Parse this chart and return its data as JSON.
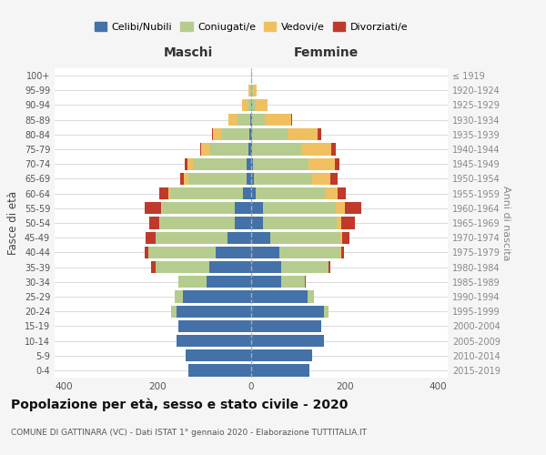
{
  "age_groups": [
    "0-4",
    "5-9",
    "10-14",
    "15-19",
    "20-24",
    "25-29",
    "30-34",
    "35-39",
    "40-44",
    "45-49",
    "50-54",
    "55-59",
    "60-64",
    "65-69",
    "70-74",
    "75-79",
    "80-84",
    "85-89",
    "90-94",
    "95-99",
    "100+"
  ],
  "birth_years": [
    "2015-2019",
    "2010-2014",
    "2005-2009",
    "2000-2004",
    "1995-1999",
    "1990-1994",
    "1985-1989",
    "1980-1984",
    "1975-1979",
    "1970-1974",
    "1965-1969",
    "1960-1964",
    "1955-1959",
    "1950-1954",
    "1945-1949",
    "1940-1944",
    "1935-1939",
    "1930-1934",
    "1925-1929",
    "1920-1924",
    "≤ 1919"
  ],
  "colors": {
    "celibi": "#4472a8",
    "coniugati": "#b5cc8e",
    "vedovi": "#f0c060",
    "divorziati": "#c0392b"
  },
  "maschi": {
    "celibi": [
      135,
      140,
      160,
      155,
      160,
      145,
      95,
      90,
      75,
      50,
      35,
      35,
      18,
      10,
      10,
      5,
      4,
      2,
      0,
      0,
      0
    ],
    "coniugati": [
      0,
      0,
      0,
      0,
      12,
      18,
      60,
      115,
      145,
      155,
      160,
      155,
      155,
      125,
      115,
      85,
      60,
      28,
      8,
      2,
      0
    ],
    "vedovi": [
      0,
      0,
      0,
      0,
      0,
      0,
      0,
      0,
      0,
      0,
      2,
      2,
      4,
      8,
      12,
      16,
      18,
      18,
      12,
      3,
      0
    ],
    "divorziati": [
      0,
      0,
      0,
      0,
      0,
      0,
      0,
      8,
      8,
      20,
      20,
      35,
      20,
      8,
      5,
      2,
      2,
      0,
      0,
      0,
      0
    ]
  },
  "femmine": {
    "celibi": [
      125,
      130,
      155,
      150,
      155,
      120,
      65,
      65,
      60,
      40,
      25,
      25,
      10,
      5,
      3,
      2,
      2,
      2,
      2,
      0,
      0
    ],
    "coniugati": [
      0,
      0,
      0,
      0,
      10,
      15,
      50,
      100,
      130,
      150,
      158,
      155,
      150,
      125,
      120,
      105,
      75,
      28,
      8,
      3,
      0
    ],
    "vedovi": [
      0,
      0,
      0,
      0,
      0,
      0,
      0,
      0,
      3,
      5,
      10,
      20,
      25,
      40,
      55,
      65,
      65,
      55,
      25,
      8,
      2
    ],
    "divorziati": [
      0,
      0,
      0,
      0,
      0,
      0,
      2,
      5,
      5,
      15,
      28,
      35,
      18,
      15,
      10,
      8,
      8,
      2,
      0,
      0,
      0
    ]
  },
  "xlim": 420,
  "title": "Popolazione per età, sesso e stato civile - 2020",
  "subtitle": "COMUNE DI GATTINARA (VC) - Dati ISTAT 1° gennaio 2020 - Elaborazione TUTTITALIA.IT",
  "ylabel": "Fasce di età",
  "ylabel_right": "Anni di nascita",
  "xlabel_maschi": "Maschi",
  "xlabel_femmine": "Femmine",
  "legend_labels": [
    "Celibi/Nubili",
    "Coniugati/e",
    "Vedovi/e",
    "Divorziati/e"
  ],
  "bg_color": "#f5f5f5",
  "plot_bg": "#ffffff"
}
